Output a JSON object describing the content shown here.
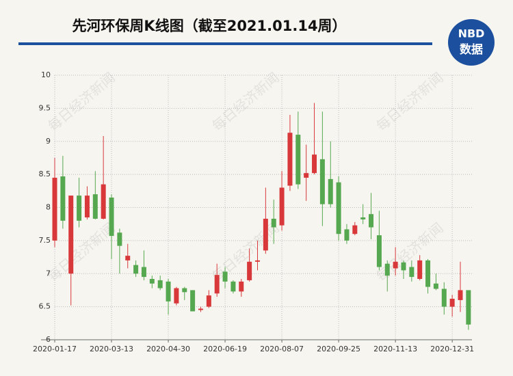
{
  "chart_data": {
    "type": "candlestick",
    "title": "先河环保周K线图（截至2021.01.14周）",
    "logo": {
      "top": "NBD",
      "bottom": "数据"
    },
    "watermark": "每日经济新闻",
    "categories": [
      "2020-01-17",
      null,
      null,
      null,
      null,
      null,
      null,
      "2020-03-13",
      null,
      null,
      null,
      null,
      null,
      null,
      "2020-04-30",
      null,
      null,
      null,
      null,
      null,
      null,
      "2020-06-19",
      null,
      null,
      null,
      null,
      null,
      null,
      "2020-08-07",
      null,
      null,
      null,
      null,
      null,
      null,
      "2020-09-25",
      null,
      null,
      null,
      null,
      null,
      null,
      "2020-11-13",
      null,
      null,
      null,
      null,
      null,
      null,
      "2020-12-31",
      null,
      null
    ],
    "open": [
      7.5,
      8.47,
      7.0,
      8.18,
      7.85,
      8.2,
      7.83,
      8.15,
      7.62,
      7.2,
      7.13,
      7.1,
      6.92,
      6.9,
      6.88,
      6.55,
      6.78,
      6.75,
      6.45,
      6.5,
      6.7,
      7.03,
      6.88,
      6.73,
      6.9,
      7.18,
      7.35,
      7.83,
      7.73,
      8.33,
      9.1,
      8.45,
      8.52,
      8.73,
      8.43,
      8.38,
      7.67,
      7.6,
      7.85,
      7.9,
      7.58,
      7.15,
      7.08,
      7.17,
      7.1,
      6.92,
      7.2,
      6.85,
      6.77,
      6.5,
      6.6,
      6.75
    ],
    "high": [
      8.75,
      8.78,
      8.18,
      8.45,
      8.32,
      8.55,
      9.08,
      8.2,
      7.68,
      7.45,
      7.2,
      7.35,
      6.97,
      6.97,
      6.92,
      6.8,
      6.8,
      6.75,
      6.5,
      6.75,
      7.15,
      7.1,
      6.9,
      6.92,
      7.38,
      7.5,
      8.3,
      8.12,
      8.55,
      9.4,
      9.45,
      8.95,
      9.58,
      9.45,
      9.0,
      8.47,
      7.75,
      7.78,
      8.05,
      8.22,
      7.95,
      7.2,
      7.4,
      7.2,
      7.2,
      7.28,
      7.22,
      7.0,
      6.87,
      6.68,
      7.18,
      6.75
    ],
    "low": [
      7.4,
      7.68,
      6.52,
      7.7,
      7.82,
      7.82,
      7.82,
      7.22,
      7.0,
      7.08,
      6.95,
      6.9,
      6.78,
      6.75,
      6.38,
      6.52,
      6.6,
      6.43,
      6.42,
      6.48,
      6.65,
      6.78,
      6.7,
      6.65,
      6.88,
      7.05,
      7.3,
      7.45,
      7.65,
      8.25,
      8.28,
      8.1,
      8.5,
      7.72,
      8.0,
      7.5,
      7.45,
      7.58,
      7.75,
      7.52,
      7.05,
      6.73,
      6.97,
      6.92,
      6.88,
      6.9,
      6.7,
      6.75,
      6.38,
      6.35,
      6.42,
      6.15
    ],
    "close": [
      8.45,
      7.8,
      8.18,
      7.8,
      8.18,
      7.83,
      8.35,
      7.57,
      7.42,
      7.27,
      7.0,
      6.95,
      6.85,
      6.78,
      6.58,
      6.78,
      6.72,
      6.43,
      6.47,
      6.67,
      6.98,
      6.88,
      6.73,
      6.88,
      7.18,
      7.2,
      7.83,
      7.7,
      8.3,
      9.13,
      8.35,
      8.52,
      8.8,
      8.05,
      8.05,
      7.6,
      7.5,
      7.73,
      7.82,
      7.7,
      7.1,
      6.97,
      7.18,
      7.05,
      6.95,
      7.2,
      6.8,
      6.77,
      6.5,
      6.62,
      6.75,
      6.23
    ],
    "up_color": "#d8383a",
    "down_color": "#55a84f",
    "ylim": [
      6,
      10
    ],
    "yticks": [
      6,
      6.5,
      7,
      7.5,
      8,
      8.5,
      9,
      9.5,
      10
    ],
    "grid": true
  }
}
